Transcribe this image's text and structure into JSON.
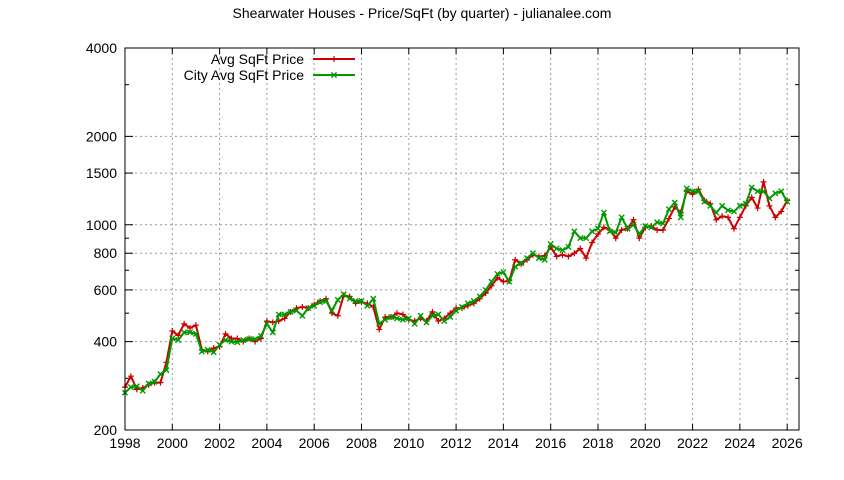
{
  "chart_data": {
    "type": "line",
    "title": "Shearwater Houses - Price/SqFt (by quarter) - julianalee.com",
    "xlabel": "",
    "ylabel": "",
    "x_scale": "linear",
    "y_scale": "log",
    "xlim": [
      1998,
      2026.5
    ],
    "ylim": [
      200,
      4000
    ],
    "x_ticks": [
      1998,
      2000,
      2002,
      2004,
      2006,
      2008,
      2010,
      2012,
      2014,
      2016,
      2018,
      2020,
      2022,
      2024,
      2026
    ],
    "y_ticks": [
      200,
      400,
      600,
      800,
      1000,
      1500,
      2000,
      4000
    ],
    "grid": true,
    "legend_position": "top-left",
    "series": [
      {
        "name": "Avg SqFt Price",
        "color": "#cc0000",
        "marker": "plus",
        "x": [
          1998.0,
          1998.25,
          1998.5,
          1998.75,
          1999.0,
          1999.25,
          1999.5,
          1999.75,
          2000.0,
          2000.25,
          2000.5,
          2000.75,
          2001.0,
          2001.25,
          2001.5,
          2001.75,
          2002.0,
          2002.25,
          2002.5,
          2002.75,
          2003.0,
          2003.25,
          2003.5,
          2003.75,
          2004.0,
          2004.25,
          2004.5,
          2004.75,
          2005.0,
          2005.25,
          2005.5,
          2005.75,
          2006.0,
          2006.25,
          2006.5,
          2006.75,
          2007.0,
          2007.25,
          2007.5,
          2007.75,
          2008.0,
          2008.25,
          2008.5,
          2008.75,
          2009.0,
          2009.25,
          2009.5,
          2009.75,
          2010.0,
          2010.25,
          2010.5,
          2010.75,
          2011.0,
          2011.25,
          2011.5,
          2011.75,
          2012.0,
          2012.25,
          2012.5,
          2012.75,
          2013.0,
          2013.25,
          2013.5,
          2013.75,
          2014.0,
          2014.25,
          2014.5,
          2014.75,
          2015.0,
          2015.25,
          2015.5,
          2015.75,
          2016.0,
          2016.25,
          2016.5,
          2016.75,
          2017.0,
          2017.25,
          2017.5,
          2017.75,
          2018.0,
          2018.25,
          2018.5,
          2018.75,
          2019.0,
          2019.25,
          2019.5,
          2019.75,
          2020.0,
          2020.25,
          2020.5,
          2020.75,
          2021.0,
          2021.25,
          2021.5,
          2021.75,
          2022.0,
          2022.25,
          2022.5,
          2022.75,
          2023.0,
          2023.25,
          2023.5,
          2023.75,
          2024.0,
          2024.25,
          2024.5,
          2024.75,
          2025.0,
          2025.25,
          2025.5,
          2025.75,
          2026.0
        ],
        "values": [
          280,
          305,
          275,
          278,
          285,
          290,
          290,
          340,
          435,
          420,
          460,
          445,
          455,
          375,
          370,
          380,
          385,
          425,
          410,
          410,
          400,
          410,
          400,
          410,
          470,
          465,
          470,
          480,
          505,
          520,
          525,
          520,
          535,
          550,
          560,
          500,
          490,
          575,
          570,
          540,
          545,
          540,
          525,
          440,
          485,
          485,
          500,
          495,
          475,
          470,
          480,
          470,
          505,
          470,
          480,
          500,
          520,
          520,
          530,
          540,
          560,
          585,
          620,
          660,
          640,
          645,
          760,
          735,
          760,
          790,
          780,
          785,
          840,
          780,
          790,
          780,
          800,
          830,
          770,
          870,
          930,
          980,
          960,
          900,
          960,
          970,
          1040,
          900,
          980,
          990,
          960,
          960,
          1050,
          1150,
          1100,
          1300,
          1270,
          1320,
          1210,
          1180,
          1040,
          1070,
          1060,
          970,
          1060,
          1160,
          1240,
          1140,
          1400,
          1160,
          1060,
          1110,
          1210
        ]
      },
      {
        "name": "City Avg SqFt Price",
        "color": "#009900",
        "marker": "cross",
        "x": [
          1998.0,
          1998.25,
          1998.5,
          1998.75,
          1999.0,
          1999.25,
          1999.5,
          1999.75,
          2000.0,
          2000.25,
          2000.5,
          2000.75,
          2001.0,
          2001.25,
          2001.5,
          2001.75,
          2002.0,
          2002.25,
          2002.5,
          2002.75,
          2003.0,
          2003.25,
          2003.5,
          2003.75,
          2004.0,
          2004.25,
          2004.5,
          2004.75,
          2005.0,
          2005.25,
          2005.5,
          2005.75,
          2006.0,
          2006.25,
          2006.5,
          2006.75,
          2007.0,
          2007.25,
          2007.5,
          2007.75,
          2008.0,
          2008.25,
          2008.5,
          2008.75,
          2009.0,
          2009.25,
          2009.5,
          2009.75,
          2010.0,
          2010.25,
          2010.5,
          2010.75,
          2011.0,
          2011.25,
          2011.5,
          2011.75,
          2012.0,
          2012.25,
          2012.5,
          2012.75,
          2013.0,
          2013.25,
          2013.5,
          2013.75,
          2014.0,
          2014.25,
          2014.5,
          2014.75,
          2015.0,
          2015.25,
          2015.5,
          2015.75,
          2016.0,
          2016.25,
          2016.5,
          2016.75,
          2017.0,
          2017.25,
          2017.5,
          2017.75,
          2018.0,
          2018.25,
          2018.5,
          2018.75,
          2019.0,
          2019.25,
          2019.5,
          2019.75,
          2020.0,
          2020.25,
          2020.5,
          2020.75,
          2021.0,
          2021.25,
          2021.5,
          2021.75,
          2022.0,
          2022.25,
          2022.5,
          2022.75,
          2023.0,
          2023.25,
          2023.5,
          2023.75,
          2024.0,
          2024.25,
          2024.5,
          2024.75,
          2025.0,
          2025.25,
          2025.5,
          2025.75,
          2026.0
        ],
        "values": [
          268,
          280,
          282,
          272,
          288,
          292,
          310,
          320,
          410,
          405,
          430,
          430,
          425,
          370,
          375,
          368,
          390,
          405,
          400,
          398,
          405,
          408,
          408,
          418,
          460,
          430,
          495,
          495,
          505,
          510,
          490,
          520,
          530,
          545,
          550,
          510,
          555,
          580,
          560,
          550,
          550,
          530,
          560,
          460,
          475,
          485,
          480,
          475,
          480,
          460,
          490,
          465,
          490,
          495,
          470,
          485,
          510,
          525,
          540,
          550,
          570,
          600,
          640,
          680,
          690,
          640,
          720,
          740,
          770,
          800,
          770,
          760,
          860,
          830,
          820,
          840,
          950,
          900,
          900,
          950,
          970,
          1100,
          950,
          940,
          1060,
          970,
          1000,
          930,
          990,
          980,
          1020,
          1010,
          1130,
          1190,
          1060,
          1330,
          1300,
          1300,
          1200,
          1160,
          1100,
          1160,
          1120,
          1110,
          1160,
          1180,
          1340,
          1300,
          1300,
          1230,
          1280,
          1300,
          1200
        ]
      }
    ]
  }
}
